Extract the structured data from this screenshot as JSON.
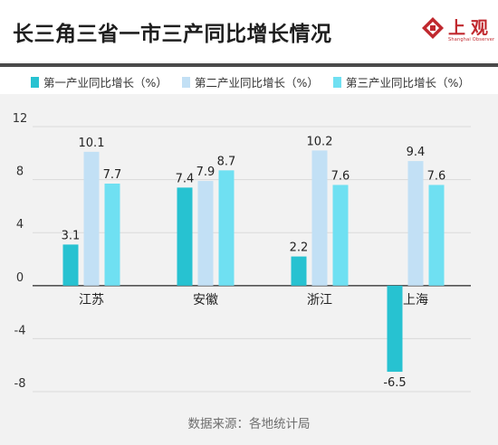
{
  "title": "长三角三省一市三产同比增长情况",
  "logo": {
    "text": "上观",
    "subtitle": "Shanghai Observer",
    "color": "#c0282e"
  },
  "legend": [
    {
      "label": "第一产业同比增长（%）",
      "color": "#27c2d1"
    },
    {
      "label": "第二产业同比增长（%）",
      "color": "#c2e0f5"
    },
    {
      "label": "第三产业同比增长（%）",
      "color": "#6fe0f2"
    }
  ],
  "source": "数据来源：各地统计局",
  "chart_data": {
    "type": "bar",
    "categories": [
      "江苏",
      "安徽",
      "浙江",
      "上海"
    ],
    "series": [
      {
        "name": "第一产业同比增长（%）",
        "values": [
          3.1,
          7.4,
          2.2,
          -6.5
        ],
        "color": "#27c2d1"
      },
      {
        "name": "第二产业同比增长（%）",
        "values": [
          10.1,
          7.9,
          10.2,
          9.4
        ],
        "color": "#c2e0f5"
      },
      {
        "name": "第三产业同比增长（%）",
        "values": [
          7.7,
          8.7,
          7.6,
          7.6
        ],
        "color": "#6fe0f2"
      }
    ],
    "yticks": [
      12,
      8,
      4,
      0,
      -4,
      -8
    ],
    "ytick_labels": [
      "12",
      "8",
      "4",
      "0",
      "-4",
      "-8"
    ],
    "ylim": [
      -8,
      12
    ],
    "grid": true,
    "data_labels": true
  }
}
